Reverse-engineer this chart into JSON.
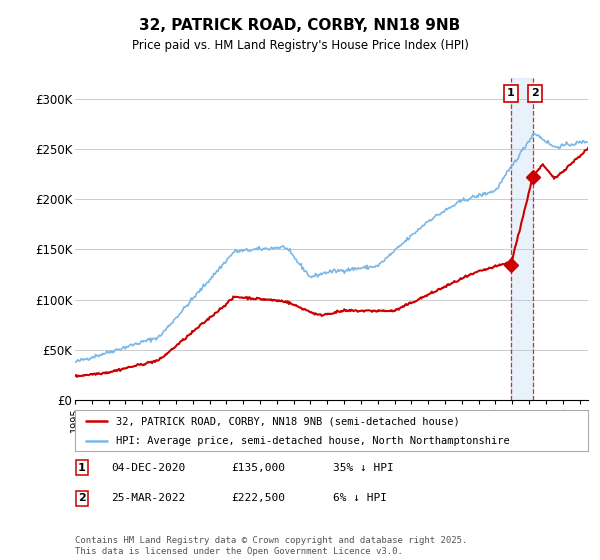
{
  "title1": "32, PATRICK ROAD, CORBY, NN18 9NB",
  "title2": "Price paid vs. HM Land Registry's House Price Index (HPI)",
  "ylim": [
    0,
    320000
  ],
  "yticks": [
    0,
    50000,
    100000,
    150000,
    200000,
    250000,
    300000
  ],
  "ytick_labels": [
    "£0",
    "£50K",
    "£100K",
    "£150K",
    "£200K",
    "£250K",
    "£300K"
  ],
  "x_start_year": 1995,
  "x_end_year": 2025,
  "legend1": "32, PATRICK ROAD, CORBY, NN18 9NB (semi-detached house)",
  "legend2": "HPI: Average price, semi-detached house, North Northamptonshire",
  "sale1_date": "04-DEC-2020",
  "sale1_price": 135000,
  "sale1_note": "35% ↓ HPI",
  "sale2_date": "25-MAR-2022",
  "sale2_price": 222500,
  "sale2_note": "6% ↓ HPI",
  "footer": "Contains HM Land Registry data © Crown copyright and database right 2025.\nThis data is licensed under the Open Government Licence v3.0.",
  "hpi_color": "#7ab8e8",
  "price_color": "#cc0000",
  "vline_color": "#cc0000",
  "shade_color": "#ddeeff",
  "background_color": "#ffffff",
  "grid_color": "#cccccc",
  "sale1_year": 2020.92,
  "sale2_year": 2022.21
}
